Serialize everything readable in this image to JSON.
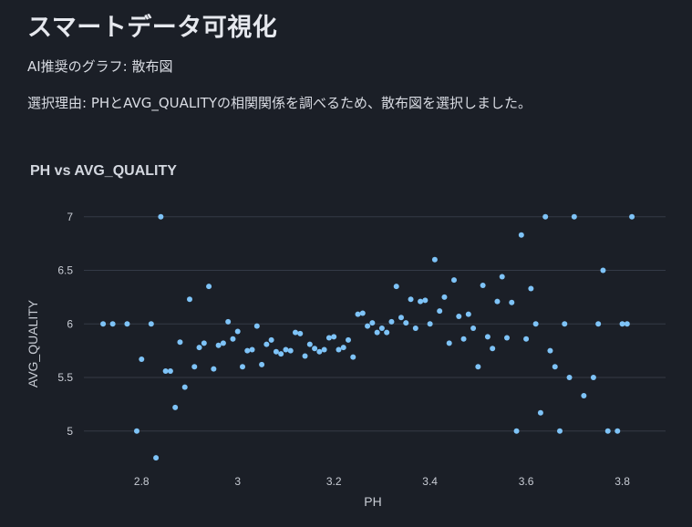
{
  "header": {
    "title": "スマートデータ可視化",
    "recommendation": "AI推奨のグラフ: 散布図",
    "reason": "選択理由: PHとAVG_QUALITYの相関関係を調べるため、散布図を選択しました。"
  },
  "chart_data": {
    "type": "scatter",
    "title": "PH vs AVG_QUALITY",
    "xlabel": "PH",
    "ylabel": "AVG_QUALITY",
    "xlim": [
      2.68,
      3.89
    ],
    "ylim": [
      4.7,
      7.1
    ],
    "xticks": [
      2.8,
      3,
      3.2,
      3.4,
      3.6,
      3.8
    ],
    "xtick_labels": [
      "2.8",
      "3",
      "3.2",
      "3.4",
      "3.6",
      "3.8"
    ],
    "yticks": [
      5,
      5.5,
      6,
      6.5,
      7
    ],
    "ytick_labels": [
      "5",
      "5.5",
      "6",
      "6.5",
      "7"
    ],
    "grid": true,
    "point_color": "#7ec3f7",
    "points": [
      {
        "x": 2.72,
        "y": 6.0
      },
      {
        "x": 2.74,
        "y": 6.0
      },
      {
        "x": 2.77,
        "y": 6.0
      },
      {
        "x": 2.79,
        "y": 5.0
      },
      {
        "x": 2.8,
        "y": 5.67
      },
      {
        "x": 2.82,
        "y": 6.0
      },
      {
        "x": 2.83,
        "y": 4.75
      },
      {
        "x": 2.84,
        "y": 7.0
      },
      {
        "x": 2.85,
        "y": 5.56
      },
      {
        "x": 2.86,
        "y": 5.56
      },
      {
        "x": 2.87,
        "y": 5.22
      },
      {
        "x": 2.88,
        "y": 5.83
      },
      {
        "x": 2.89,
        "y": 5.41
      },
      {
        "x": 2.9,
        "y": 6.23
      },
      {
        "x": 2.91,
        "y": 5.6
      },
      {
        "x": 2.92,
        "y": 5.78
      },
      {
        "x": 2.93,
        "y": 5.82
      },
      {
        "x": 2.94,
        "y": 6.35
      },
      {
        "x": 2.95,
        "y": 5.58
      },
      {
        "x": 2.96,
        "y": 5.8
      },
      {
        "x": 2.97,
        "y": 5.82
      },
      {
        "x": 2.98,
        "y": 6.02
      },
      {
        "x": 2.99,
        "y": 5.86
      },
      {
        "x": 3.0,
        "y": 5.93
      },
      {
        "x": 3.01,
        "y": 5.6
      },
      {
        "x": 3.02,
        "y": 5.75
      },
      {
        "x": 3.03,
        "y": 5.76
      },
      {
        "x": 3.04,
        "y": 5.98
      },
      {
        "x": 3.05,
        "y": 5.62
      },
      {
        "x": 3.06,
        "y": 5.81
      },
      {
        "x": 3.07,
        "y": 5.85
      },
      {
        "x": 3.08,
        "y": 5.74
      },
      {
        "x": 3.09,
        "y": 5.72
      },
      {
        "x": 3.1,
        "y": 5.76
      },
      {
        "x": 3.11,
        "y": 5.75
      },
      {
        "x": 3.12,
        "y": 5.92
      },
      {
        "x": 3.13,
        "y": 5.91
      },
      {
        "x": 3.14,
        "y": 5.7
      },
      {
        "x": 3.15,
        "y": 5.81
      },
      {
        "x": 3.16,
        "y": 5.77
      },
      {
        "x": 3.17,
        "y": 5.74
      },
      {
        "x": 3.18,
        "y": 5.76
      },
      {
        "x": 3.19,
        "y": 5.87
      },
      {
        "x": 3.2,
        "y": 5.88
      },
      {
        "x": 3.21,
        "y": 5.76
      },
      {
        "x": 3.22,
        "y": 5.78
      },
      {
        "x": 3.23,
        "y": 5.85
      },
      {
        "x": 3.24,
        "y": 5.69
      },
      {
        "x": 3.25,
        "y": 6.09
      },
      {
        "x": 3.26,
        "y": 6.1
      },
      {
        "x": 3.27,
        "y": 5.98
      },
      {
        "x": 3.28,
        "y": 6.01
      },
      {
        "x": 3.29,
        "y": 5.92
      },
      {
        "x": 3.3,
        "y": 5.96
      },
      {
        "x": 3.31,
        "y": 5.92
      },
      {
        "x": 3.32,
        "y": 6.02
      },
      {
        "x": 3.33,
        "y": 6.35
      },
      {
        "x": 3.34,
        "y": 6.06
      },
      {
        "x": 3.35,
        "y": 6.01
      },
      {
        "x": 3.36,
        "y": 6.23
      },
      {
        "x": 3.37,
        "y": 5.96
      },
      {
        "x": 3.38,
        "y": 6.21
      },
      {
        "x": 3.39,
        "y": 6.22
      },
      {
        "x": 3.4,
        "y": 6.0
      },
      {
        "x": 3.41,
        "y": 6.6
      },
      {
        "x": 3.42,
        "y": 6.12
      },
      {
        "x": 3.43,
        "y": 6.25
      },
      {
        "x": 3.44,
        "y": 5.82
      },
      {
        "x": 3.45,
        "y": 6.41
      },
      {
        "x": 3.46,
        "y": 6.07
      },
      {
        "x": 3.47,
        "y": 5.86
      },
      {
        "x": 3.48,
        "y": 6.09
      },
      {
        "x": 3.49,
        "y": 5.96
      },
      {
        "x": 3.5,
        "y": 5.6
      },
      {
        "x": 3.51,
        "y": 6.36
      },
      {
        "x": 3.52,
        "y": 5.88
      },
      {
        "x": 3.53,
        "y": 5.77
      },
      {
        "x": 3.54,
        "y": 6.21
      },
      {
        "x": 3.55,
        "y": 6.44
      },
      {
        "x": 3.56,
        "y": 5.87
      },
      {
        "x": 3.57,
        "y": 6.2
      },
      {
        "x": 3.58,
        "y": 5.0
      },
      {
        "x": 3.59,
        "y": 6.83
      },
      {
        "x": 3.6,
        "y": 5.86
      },
      {
        "x": 3.61,
        "y": 6.33
      },
      {
        "x": 3.62,
        "y": 6.0
      },
      {
        "x": 3.63,
        "y": 5.17
      },
      {
        "x": 3.64,
        "y": 7.0
      },
      {
        "x": 3.65,
        "y": 5.75
      },
      {
        "x": 3.66,
        "y": 5.6
      },
      {
        "x": 3.67,
        "y": 5.0
      },
      {
        "x": 3.68,
        "y": 6.0
      },
      {
        "x": 3.69,
        "y": 5.5
      },
      {
        "x": 3.7,
        "y": 7.0
      },
      {
        "x": 3.72,
        "y": 5.33
      },
      {
        "x": 3.74,
        "y": 5.5
      },
      {
        "x": 3.75,
        "y": 6.0
      },
      {
        "x": 3.76,
        "y": 6.5
      },
      {
        "x": 3.77,
        "y": 5.0
      },
      {
        "x": 3.79,
        "y": 5.0
      },
      {
        "x": 3.8,
        "y": 6.0
      },
      {
        "x": 3.81,
        "y": 6.0
      },
      {
        "x": 3.82,
        "y": 7.0
      }
    ]
  }
}
